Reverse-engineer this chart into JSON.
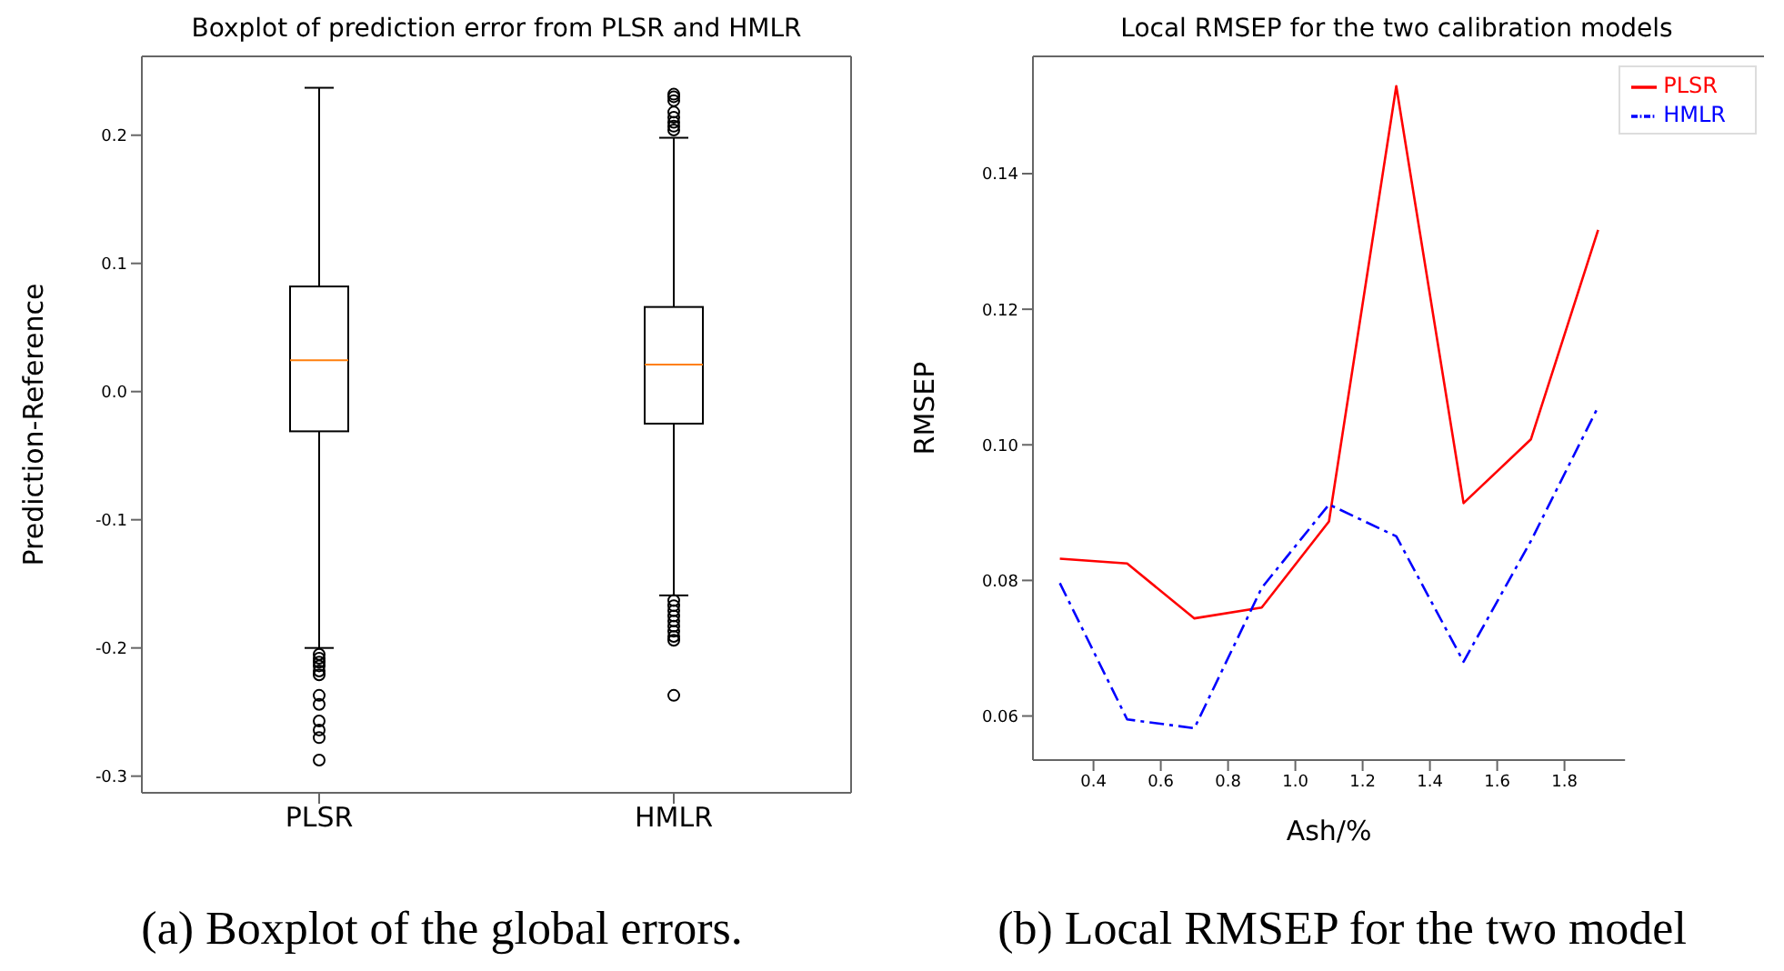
{
  "chart_data": [
    {
      "type": "box",
      "title": "Boxplot of prediction error from PLSR and HMLR",
      "ylabel": "Prediction-Reference",
      "categories": [
        "PLSR",
        "HMLR"
      ],
      "boxes": [
        {
          "low": -0.2,
          "q1": -0.031,
          "median": 0.0245,
          "q3": 0.082,
          "high": 0.237,
          "outliers": [
            -0.205,
            -0.208,
            -0.211,
            -0.214,
            -0.218,
            -0.221,
            -0.237,
            -0.244,
            -0.257,
            -0.264,
            -0.27,
            -0.2875
          ]
        },
        {
          "low": -0.159,
          "q1": -0.025,
          "median": 0.021,
          "q3": 0.066,
          "high": 0.198,
          "outliers": [
            0.232,
            0.23,
            0.227,
            0.218,
            0.214,
            0.21,
            0.207,
            0.204,
            -0.163,
            -0.167,
            -0.171,
            -0.175,
            -0.179,
            -0.183,
            -0.187,
            -0.191,
            -0.194,
            -0.237
          ]
        }
      ],
      "ylim": [
        -0.313,
        0.2615
      ],
      "yticks": [
        -0.3,
        -0.2,
        -0.1,
        {
          "value": 0,
          "label": "0.0"
        },
        0.1,
        0.2
      ],
      "grid": false,
      "annotations": [
        "(a) Boxplot of the global errors."
      ]
    },
    {
      "type": "line",
      "title": "Local RMSEP for the two calibration models",
      "xlabel": "Ash/%",
      "ylabel": "RMSEP",
      "x": [
        0.3,
        0.5,
        0.7,
        0.9,
        1.1,
        1.3,
        1.5,
        1.7,
        1.9
      ],
      "series": [
        {
          "name": "PLSR",
          "color": "#ff0000",
          "line_style": "solid",
          "values": [
            0.0832,
            0.0825,
            0.0744,
            0.076,
            0.0887,
            0.1529,
            0.0914,
            0.1008,
            0.1317
          ]
        },
        {
          "name": "HMLR",
          "color": "#0000ff",
          "line_style": "dashdot",
          "values": [
            0.0796,
            0.0595,
            0.0582,
            0.0789,
            0.0912,
            0.0865,
            0.068,
            0.0858,
            0.1056
          ]
        }
      ],
      "xlim": [
        0.22,
        1.98
      ],
      "xticks": [
        0.4,
        0.6,
        0.8,
        {
          "value": 1,
          "label": "1.0"
        },
        1.2,
        1.4,
        1.6,
        1.8
      ],
      "ylim": [
        0.0535,
        0.1573
      ],
      "yticks": [
        0.06,
        0.08,
        {
          "value": 0.1,
          "label": "0.10"
        },
        0.12,
        0.14
      ],
      "grid": false,
      "legend": "top right",
      "marker": "none",
      "annotations": [
        "(b) Local RMSEP for the two model"
      ]
    }
  ]
}
